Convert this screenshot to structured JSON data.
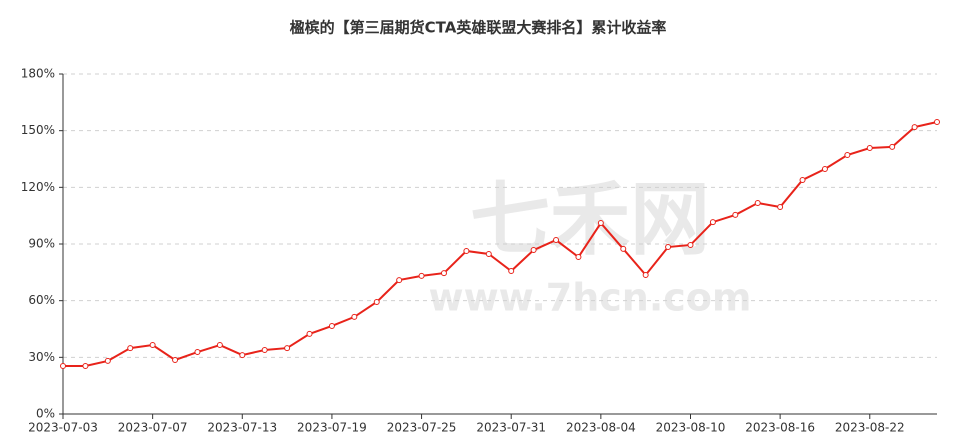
{
  "chart_data": {
    "type": "line",
    "title": "楹槟的【第三届期货CTA英雄联盟大赛排名】累计收益率",
    "watermark": [
      "七禾网",
      "www.7hcn.com"
    ],
    "categories": [
      "2023-07-03",
      null,
      null,
      null,
      "2023-07-07",
      null,
      null,
      null,
      "2023-07-13",
      null,
      null,
      null,
      "2023-07-19",
      null,
      null,
      null,
      "2023-07-25",
      null,
      null,
      null,
      "2023-07-31",
      null,
      null,
      null,
      "2023-08-04",
      null,
      null,
      null,
      "2023-08-10",
      null,
      null,
      null,
      "2023-08-16",
      null,
      null,
      null,
      "2023-08-22",
      null,
      null,
      null
    ],
    "series": [
      {
        "name": "累计收益率",
        "color": "#e8231a",
        "values": [
          25.4,
          25.4,
          28.1,
          34.9,
          36.5,
          28.6,
          32.8,
          36.5,
          31.2,
          33.9,
          34.9,
          42.4,
          46.6,
          51.4,
          59.3,
          70.9,
          73.1,
          74.6,
          86.3,
          84.7,
          75.7,
          86.8,
          92.1,
          83.1,
          101.1,
          87.4,
          73.6,
          88.4,
          89.5,
          101.6,
          105.4,
          111.7,
          109.6,
          123.9,
          129.7,
          137.1,
          140.8,
          141.4,
          151.9,
          154.6
        ]
      }
    ],
    "ylim": [
      0,
      180
    ],
    "yticks": [
      {
        "value": 0,
        "label": "0%"
      },
      {
        "value": 30,
        "label": "30%"
      },
      {
        "value": 60,
        "label": "60%"
      },
      {
        "value": 90,
        "label": "90%"
      },
      {
        "value": 120,
        "label": "120%"
      },
      {
        "value": 150,
        "label": "150%"
      },
      {
        "value": 180,
        "label": "180%"
      }
    ],
    "grid": true
  }
}
